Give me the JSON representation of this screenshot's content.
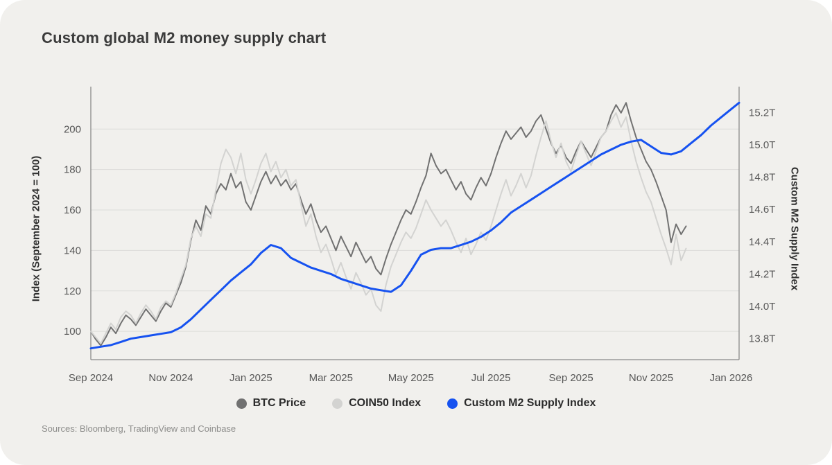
{
  "title": "Custom global M2 money supply chart",
  "sources": "Sources: Bloomberg, TradingView and Coinbase",
  "colors": {
    "background": "#f1f0ed",
    "grid": "#dcdcd9",
    "axis_line": "#8a8a8a",
    "tick_text": "#565656",
    "btc": "#717171",
    "coin50": "#d3d3d1",
    "m2": "#1652f0"
  },
  "chart_data": {
    "type": "line",
    "x_axis": {
      "min": 0,
      "max": 16.2,
      "tick_positions": [
        0,
        2,
        4,
        6,
        8,
        10,
        12,
        14,
        16
      ],
      "tick_labels": [
        "Sep 2024",
        "Nov 2024",
        "Jan 2025",
        "Mar 2025",
        "May 2025",
        "Jul 2025",
        "Sep 2025",
        "Nov 2025",
        "Jan 2026"
      ]
    },
    "left_axis": {
      "label": "Index (September 2024 = 100)",
      "min": 86,
      "max": 221,
      "tick_values": [
        100,
        120,
        140,
        160,
        180,
        200
      ],
      "tick_labels": [
        "100",
        "120",
        "140",
        "160",
        "180",
        "200"
      ],
      "grid": true
    },
    "right_axis": {
      "label": "Custom M2 Supply Index",
      "min": 13.67,
      "max": 15.36,
      "tick_values": [
        13.8,
        14.0,
        14.2,
        14.4,
        14.6,
        14.8,
        15.0,
        15.2
      ],
      "tick_labels": [
        "13.8T",
        "14.0T",
        "14.2T",
        "14.4T",
        "14.6T",
        "14.8T",
        "15.0T",
        "15.2T"
      ],
      "grid": false
    },
    "series": [
      {
        "name": "BTC Price",
        "axis": "left",
        "color": "#717171",
        "width": 2,
        "start": 0,
        "step": 0.125,
        "values": [
          100,
          96,
          93,
          97,
          102,
          99,
          104,
          108,
          106,
          103,
          107,
          111,
          108,
          105,
          110,
          114,
          112,
          118,
          124,
          132,
          145,
          155,
          150,
          162,
          158,
          168,
          173,
          170,
          178,
          171,
          174,
          164,
          160,
          167,
          174,
          179,
          173,
          177,
          172,
          175,
          170,
          173,
          165,
          158,
          163,
          155,
          149,
          152,
          146,
          140,
          147,
          142,
          137,
          144,
          139,
          134,
          137,
          131,
          128,
          136,
          143,
          149,
          155,
          160,
          158,
          164,
          171,
          177,
          188,
          182,
          178,
          180,
          175,
          170,
          174,
          168,
          165,
          171,
          176,
          172,
          178,
          186,
          193,
          199,
          195,
          198,
          201,
          196,
          199,
          204,
          207,
          200,
          193,
          188,
          192,
          186,
          183,
          189,
          194,
          190,
          186,
          191,
          196,
          199,
          207,
          212,
          208,
          213,
          204,
          196,
          190,
          184,
          180,
          174,
          167,
          160,
          144,
          153,
          148,
          152
        ]
      },
      {
        "name": "COIN50 Index",
        "axis": "left",
        "color": "#d3d3d1",
        "width": 2,
        "start": 0,
        "step": 0.125,
        "values": [
          100,
          97,
          94,
          99,
          104,
          101,
          107,
          110,
          108,
          104,
          109,
          113,
          110,
          106,
          112,
          115,
          113,
          119,
          126,
          133,
          146,
          152,
          147,
          158,
          156,
          170,
          183,
          190,
          186,
          178,
          188,
          175,
          168,
          175,
          183,
          188,
          179,
          184,
          176,
          180,
          172,
          175,
          163,
          152,
          158,
          147,
          139,
          143,
          136,
          128,
          134,
          127,
          121,
          129,
          124,
          118,
          121,
          113,
          110,
          123,
          132,
          138,
          144,
          149,
          146,
          151,
          158,
          165,
          160,
          156,
          152,
          155,
          150,
          144,
          139,
          146,
          138,
          143,
          149,
          145,
          152,
          160,
          168,
          175,
          167,
          172,
          178,
          171,
          177,
          187,
          196,
          204,
          194,
          186,
          193,
          184,
          179,
          187,
          194,
          188,
          182,
          189,
          196,
          199,
          204,
          208,
          201,
          206,
          194,
          184,
          176,
          169,
          164,
          156,
          148,
          141,
          133,
          148,
          135,
          141
        ]
      },
      {
        "name": "Custom M2 Supply Index",
        "axis": "right",
        "color": "#1652f0",
        "width": 3,
        "start": 0,
        "step": 0.25,
        "values": [
          13.74,
          13.75,
          13.76,
          13.78,
          13.8,
          13.81,
          13.82,
          13.83,
          13.84,
          13.87,
          13.92,
          13.98,
          14.04,
          14.1,
          14.16,
          14.21,
          14.26,
          14.33,
          14.38,
          14.36,
          14.3,
          14.27,
          14.24,
          14.22,
          14.2,
          14.17,
          14.15,
          14.13,
          14.11,
          14.1,
          14.09,
          14.13,
          14.22,
          14.32,
          14.35,
          14.36,
          14.36,
          14.38,
          14.4,
          14.43,
          14.47,
          14.52,
          14.58,
          14.62,
          14.66,
          14.7,
          14.74,
          14.78,
          14.82,
          14.86,
          14.9,
          14.94,
          14.97,
          15.0,
          15.02,
          15.03,
          14.99,
          14.95,
          14.94,
          14.96,
          15.01,
          15.06,
          15.12,
          15.17,
          15.22,
          15.26
        ]
      }
    ]
  },
  "legend": {
    "items": [
      {
        "label": "BTC Price",
        "color": "#717171"
      },
      {
        "label": "COIN50 Index",
        "color": "#d3d3d1"
      },
      {
        "label": "Custom M2 Supply Index",
        "color": "#1652f0"
      }
    ]
  }
}
